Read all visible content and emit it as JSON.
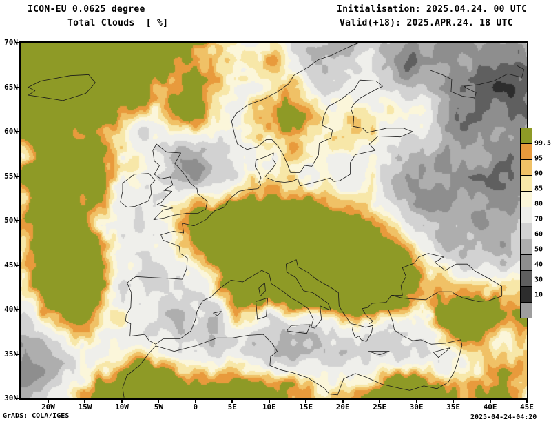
{
  "header": {
    "model": "ICON-EU 0.0625 degree",
    "variable": "Total Clouds  [ %]",
    "init": "Initialisation: 2025.04.24. 00 UTC",
    "valid": "Valid(+18): 2025.APR.24. 18 UTC"
  },
  "footer": {
    "credit": "GrADS: COLA/IGES",
    "created": "2025-04-24-04:20"
  },
  "axes": {
    "y_ticks": [
      "70N",
      "65N",
      "60N",
      "55N",
      "50N",
      "45N",
      "40N",
      "35N",
      "30N"
    ],
    "x_ticks": [
      "20W",
      "15W",
      "10W",
      "5W",
      "0",
      "5E",
      "10E",
      "15E",
      "20E",
      "25E",
      "30E",
      "35E",
      "40E",
      "45E"
    ]
  },
  "legend": {
    "labels": [
      "99.5",
      "95",
      "90",
      "85",
      "80",
      "70",
      "60",
      "50",
      "40",
      "30",
      "10"
    ],
    "colors_top_to_bottom": [
      "#8e9a26",
      "#e89a3c",
      "#f0c166",
      "#f7e7a8",
      "#fbf6da",
      "#efefeb",
      "#d2d2d2",
      "#aeaeae",
      "#8e8e8e",
      "#5f5f5f",
      "#2d2d2d",
      "#9e9e9e"
    ]
  },
  "chart_data": {
    "type": "heatmap",
    "title": "Total Clouds  [ %]",
    "model": "ICON-EU 0.0625 degree",
    "units": "%",
    "x_axis": {
      "label_ticks": [
        "20W",
        "15W",
        "10W",
        "5W",
        "0",
        "5E",
        "10E",
        "15E",
        "20E",
        "25E",
        "30E",
        "35E",
        "40E",
        "45E"
      ],
      "range_deg_lon": [
        -23.7,
        45
      ]
    },
    "y_axis": {
      "label_ticks": [
        "70N",
        "65N",
        "60N",
        "55N",
        "50N",
        "45N",
        "40N",
        "35N",
        "30N"
      ],
      "range_deg_lat": [
        30,
        70
      ]
    },
    "levels_percent": [
      10,
      30,
      40,
      50,
      60,
      70,
      80,
      85,
      90,
      95,
      99.5
    ],
    "palette_high_to_low": [
      "#8e9a26",
      "#e89a3c",
      "#f0c166",
      "#f7e7a8",
      "#fbf6da",
      "#efefeb",
      "#d2d2d2",
      "#aeaeae",
      "#8e8e8e",
      "#5f5f5f",
      "#2d2d2d",
      "#9e9e9e"
    ],
    "legend_position": "right",
    "grid": false,
    "features": [
      "Overcast (>=99.5%, olive) band over France, Germany, Alps, Italy and the Balkans",
      "Overcast frontal band along the western Atlantic edge of the domain",
      "Overcast area over the far North Atlantic / northern Norway (top-left quadrant)",
      "Orange 90-99% band across southern Scandinavia and the Baltic",
      "Overcast bands over northwest Africa and Libya/Egypt along the bottom edge",
      "Overcast area over eastern Turkey / Caucasus",
      "Mostly clear pale area over Iberia and the central/western Mediterranean",
      "Gray broken-cloud swirls over the southwest Atlantic corner and over western Russia/Ukraine"
    ]
  }
}
